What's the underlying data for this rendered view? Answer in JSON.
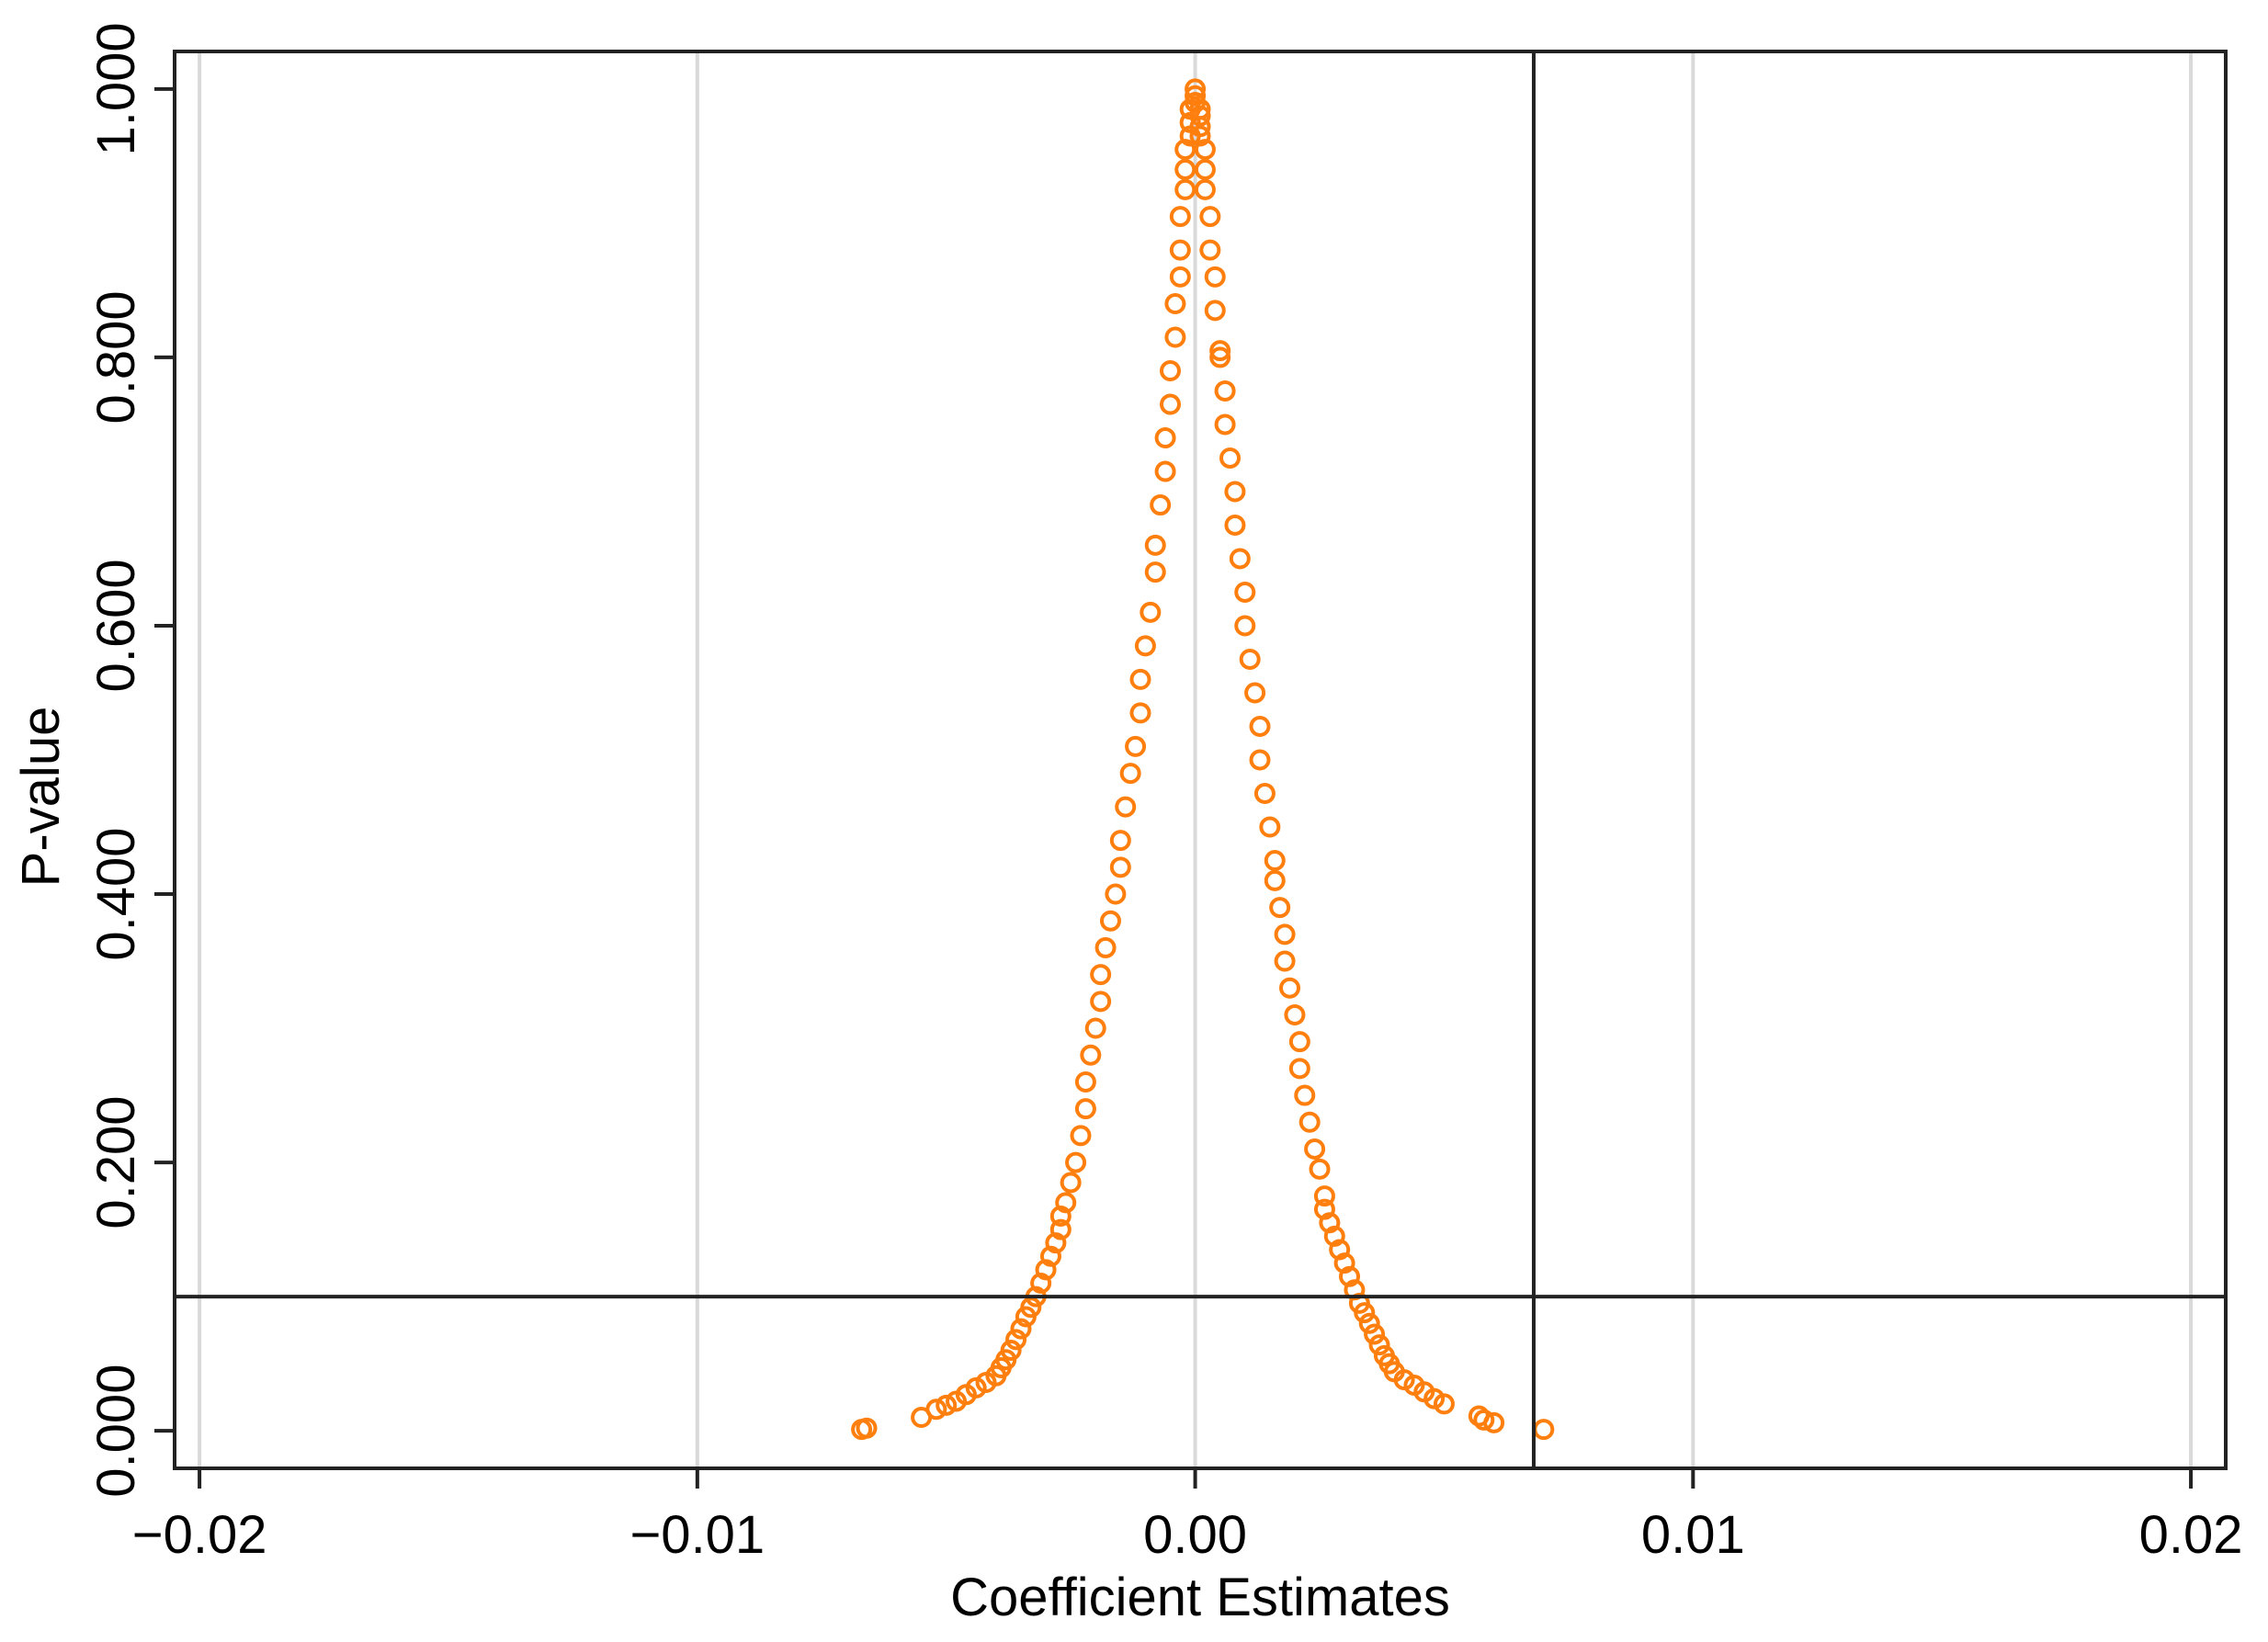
{
  "chart_data": {
    "type": "scatter",
    "xlabel": "Coefficient Estimates",
    "ylabel": "P-value",
    "xlim": [
      -0.0205,
      0.0207
    ],
    "ylim": [
      -0.028,
      1.028
    ],
    "x_ticks": [
      -0.02,
      -0.01,
      0.0,
      0.01,
      0.02
    ],
    "x_tick_labels": [
      "−0.02",
      "−0.01",
      "0.00",
      "0.01",
      "0.02"
    ],
    "y_ticks": [
      0.0,
      0.2,
      0.4,
      0.6,
      0.8,
      1.0
    ],
    "y_tick_labels": [
      "0.000",
      "0.200",
      "0.400",
      "0.600",
      "0.800",
      "1.000"
    ],
    "grid": "vertical gridlines at x ticks",
    "reference_lines": {
      "horizontal_y": 0.1,
      "vertical_x": 0.0068
    },
    "marker": "hollow circle",
    "marker_color": "#ff7f0e",
    "gridline_color": "#d9d9d9",
    "frame_color": "#222222",
    "legend": "none",
    "shape": "symmetric peak centred at 0.00; p-value falls from 1.000 at 0 to about 0.100 near ±0.0036",
    "series": [
      {
        "points": [
          [
            0.0,
            1.0
          ],
          [
            0.0,
            0.995
          ],
          [
            0.0,
            0.99
          ],
          [
            0.0001,
            0.985
          ],
          [
            0.0001,
            0.98
          ],
          [
            0.0001,
            0.972
          ],
          [
            -0.0001,
            0.985
          ],
          [
            -0.0001,
            0.975
          ],
          [
            -0.0001,
            0.965
          ],
          [
            0.0001,
            0.965
          ],
          [
            -0.0002,
            0.955
          ],
          [
            0.0002,
            0.955
          ],
          [
            -0.0002,
            0.94
          ],
          [
            0.0002,
            0.94
          ],
          [
            -0.0002,
            0.925
          ],
          [
            0.0002,
            0.925
          ],
          [
            -0.0003,
            0.905
          ],
          [
            0.0003,
            0.905
          ],
          [
            -0.0003,
            0.88
          ],
          [
            0.0003,
            0.88
          ],
          [
            -0.0003,
            0.86
          ],
          [
            0.0004,
            0.86
          ],
          [
            -0.0004,
            0.84
          ],
          [
            0.0004,
            0.835
          ],
          [
            -0.0004,
            0.815
          ],
          [
            0.0005,
            0.805
          ],
          [
            0.0005,
            0.8
          ],
          [
            -0.0005,
            0.79
          ],
          [
            0.0006,
            0.775
          ],
          [
            -0.0005,
            0.765
          ],
          [
            0.0006,
            0.75
          ],
          [
            -0.0006,
            0.74
          ],
          [
            0.0007,
            0.725
          ],
          [
            -0.0006,
            0.715
          ],
          [
            0.0008,
            0.7
          ],
          [
            -0.0007,
            0.69
          ],
          [
            0.0008,
            0.675
          ],
          [
            -0.0008,
            0.66
          ],
          [
            0.0009,
            0.65
          ],
          [
            -0.0008,
            0.64
          ],
          [
            0.001,
            0.625
          ],
          [
            -0.0009,
            0.61
          ],
          [
            0.001,
            0.6
          ],
          [
            -0.001,
            0.585
          ],
          [
            0.0011,
            0.575
          ],
          [
            -0.0011,
            0.56
          ],
          [
            0.0012,
            0.55
          ],
          [
            -0.0011,
            0.535
          ],
          [
            0.0013,
            0.525
          ],
          [
            -0.0012,
            0.51
          ],
          [
            0.0013,
            0.5
          ],
          [
            -0.0013,
            0.49
          ],
          [
            0.0014,
            0.475
          ],
          [
            -0.0014,
            0.465
          ],
          [
            0.0015,
            0.45
          ],
          [
            -0.0015,
            0.44
          ],
          [
            0.0016,
            0.425
          ],
          [
            -0.0015,
            0.42
          ],
          [
            0.0016,
            0.41
          ],
          [
            -0.0016,
            0.4
          ],
          [
            0.0017,
            0.39
          ],
          [
            -0.0017,
            0.38
          ],
          [
            0.0018,
            0.37
          ],
          [
            -0.0018,
            0.36
          ],
          [
            0.0018,
            0.35
          ],
          [
            -0.0019,
            0.34
          ],
          [
            0.0019,
            0.33
          ],
          [
            -0.0019,
            0.32
          ],
          [
            0.002,
            0.31
          ],
          [
            -0.002,
            0.3
          ],
          [
            0.0021,
            0.29
          ],
          [
            -0.0021,
            0.28
          ],
          [
            0.0021,
            0.27
          ],
          [
            -0.0022,
            0.26
          ],
          [
            0.0022,
            0.25
          ],
          [
            -0.0022,
            0.24
          ],
          [
            0.0023,
            0.23
          ],
          [
            -0.0023,
            0.22
          ],
          [
            0.0024,
            0.21
          ],
          [
            -0.0024,
            0.2
          ],
          [
            0.0025,
            0.195
          ],
          [
            -0.0025,
            0.185
          ],
          [
            0.0026,
            0.175
          ],
          [
            -0.0026,
            0.17
          ],
          [
            0.0026,
            0.165
          ],
          [
            -0.0027,
            0.16
          ],
          [
            0.0027,
            0.155
          ],
          [
            -0.0027,
            0.15
          ],
          [
            0.0028,
            0.145
          ],
          [
            -0.0028,
            0.14
          ],
          [
            0.0029,
            0.135
          ],
          [
            -0.0029,
            0.13
          ],
          [
            0.003,
            0.125
          ],
          [
            -0.003,
            0.12
          ],
          [
            0.0031,
            0.115
          ],
          [
            -0.0031,
            0.11
          ],
          [
            0.0032,
            0.105
          ],
          [
            -0.0032,
            0.1
          ],
          [
            0.0033,
            0.095
          ],
          [
            -0.0033,
            0.092
          ],
          [
            0.0034,
            0.088
          ],
          [
            -0.0034,
            0.085
          ],
          [
            0.0035,
            0.08
          ],
          [
            -0.0035,
            0.076
          ],
          [
            0.0036,
            0.072
          ],
          [
            -0.0036,
            0.068
          ],
          [
            0.0037,
            0.064
          ],
          [
            -0.0037,
            0.06
          ],
          [
            0.0038,
            0.056
          ],
          [
            -0.0038,
            0.053
          ],
          [
            0.0039,
            0.05
          ],
          [
            -0.0039,
            0.047
          ],
          [
            0.004,
            0.044
          ],
          [
            -0.004,
            0.041
          ],
          [
            0.0042,
            0.038
          ],
          [
            -0.0042,
            0.036
          ],
          [
            0.0044,
            0.034
          ],
          [
            -0.0044,
            0.032
          ],
          [
            0.0046,
            0.029
          ],
          [
            -0.0046,
            0.027
          ],
          [
            0.0048,
            0.024
          ],
          [
            -0.0048,
            0.022
          ],
          [
            0.005,
            0.02
          ],
          [
            -0.005,
            0.019
          ],
          [
            -0.0052,
            0.016
          ],
          [
            -0.0055,
            0.01
          ],
          [
            0.0057,
            0.011
          ],
          [
            0.0058,
            0.008
          ],
          [
            0.006,
            0.006
          ],
          [
            -0.0066,
            0.002
          ],
          [
            -0.0067,
            0.001
          ],
          [
            0.007,
            0.001
          ]
        ]
      }
    ]
  }
}
